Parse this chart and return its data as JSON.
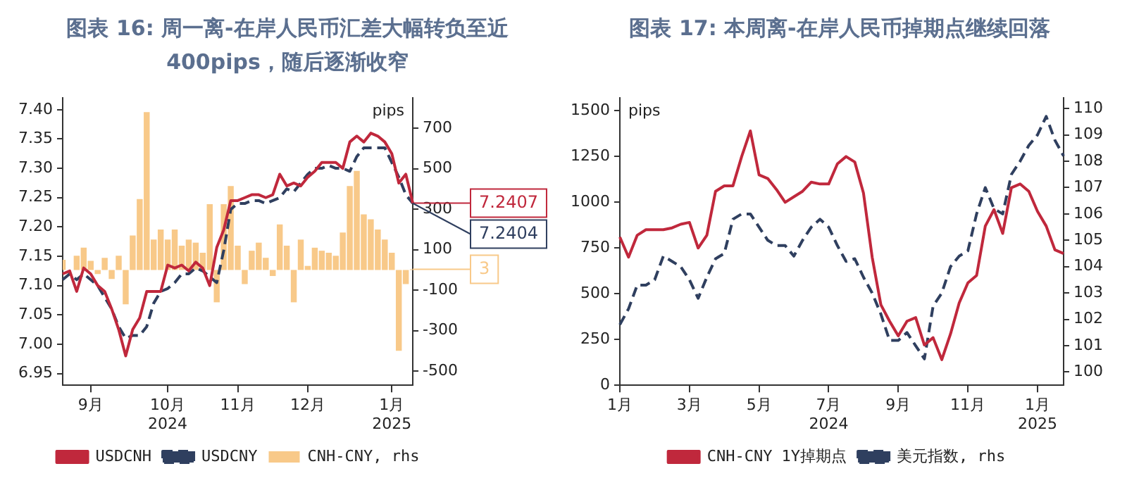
{
  "chart_data": [
    {
      "type": "line",
      "title": "图表 16: 周一离-在岸人民币汇差大幅转负至近400pips，随后逐渐收窄",
      "y2label": "pips",
      "legend": "bottom",
      "marker": "none",
      "categories": [
        null,
        null,
        null,
        null,
        "9月",
        null,
        null,
        null,
        null,
        null,
        null,
        null,
        null,
        null,
        null,
        "10月\n2024",
        null,
        null,
        null,
        null,
        null,
        null,
        null,
        null,
        null,
        "11月",
        null,
        null,
        null,
        null,
        null,
        null,
        null,
        null,
        null,
        "12月",
        null,
        null,
        null,
        null,
        null,
        null,
        null,
        null,
        null,
        null,
        null,
        "1月\n2025",
        null,
        null,
        null
      ],
      "ylim": [
        6.93,
        7.42
      ],
      "yticks": [
        {
          "value": 6.95,
          "label": "6.95"
        },
        {
          "value": 7.0,
          "label": "7.00"
        },
        {
          "value": 7.05,
          "label": "7.05"
        },
        {
          "value": 7.1,
          "label": "7.10"
        },
        {
          "value": 7.15,
          "label": "7.15"
        },
        {
          "value": 7.2,
          "label": "7.20"
        },
        {
          "value": 7.25,
          "label": "7.25"
        },
        {
          "value": 7.3,
          "label": "7.30"
        },
        {
          "value": 7.35,
          "label": "7.35"
        },
        {
          "value": 7.4,
          "label": "7.40"
        }
      ],
      "y2lim": [
        -570,
        850
      ],
      "y2ticks": [
        -500,
        -300,
        -100,
        100,
        300,
        500,
        700
      ],
      "series": [
        {
          "name": "CNH-CNY, rhs",
          "type": "bar",
          "axis": "y2",
          "color": "#f8c989",
          "values": [
            50,
            0,
            70,
            110,
            45,
            -20,
            60,
            -45,
            70,
            -170,
            170,
            350,
            780,
            150,
            200,
            150,
            200,
            120,
            150,
            135,
            85,
            325,
            -160,
            325,
            415,
            120,
            -70,
            95,
            135,
            60,
            -30,
            225,
            120,
            -160,
            150,
            20,
            110,
            95,
            85,
            70,
            185,
            415,
            490,
            275,
            250,
            200,
            150,
            85,
            -400,
            -70,
            3
          ],
          "value_labels": [
            null,
            null,
            null,
            null,
            null,
            null,
            null,
            null,
            null,
            null,
            null,
            null,
            null,
            null,
            null,
            null,
            null,
            null,
            null,
            null,
            null,
            null,
            null,
            null,
            null,
            null,
            null,
            null,
            null,
            null,
            null,
            null,
            null,
            null,
            null,
            null,
            null,
            null,
            null,
            null,
            null,
            null,
            null,
            null,
            null,
            null,
            null,
            null,
            null,
            null,
            "3"
          ]
        },
        {
          "name": "USDCNH",
          "line_style": "solid",
          "color": "#c0283c",
          "values": [
            7.12,
            7.125,
            7.09,
            7.13,
            7.12,
            7.1,
            7.09,
            7.06,
            7.025,
            6.98,
            7.025,
            7.045,
            7.09,
            7.09,
            7.09,
            7.135,
            7.13,
            7.135,
            7.125,
            7.14,
            7.13,
            7.1,
            7.165,
            7.195,
            7.245,
            7.245,
            7.25,
            7.255,
            7.255,
            7.25,
            7.255,
            7.29,
            7.27,
            7.275,
            7.27,
            7.285,
            7.295,
            7.31,
            7.31,
            7.31,
            7.3,
            7.345,
            7.355,
            7.345,
            7.36,
            7.355,
            7.345,
            7.325,
            7.275,
            7.29,
            7.2407
          ],
          "value_labels": [
            null,
            null,
            null,
            null,
            null,
            null,
            null,
            null,
            null,
            null,
            null,
            null,
            null,
            null,
            null,
            null,
            null,
            null,
            null,
            null,
            null,
            null,
            null,
            null,
            null,
            null,
            null,
            null,
            null,
            null,
            null,
            null,
            null,
            null,
            null,
            null,
            null,
            null,
            null,
            null,
            null,
            null,
            null,
            null,
            null,
            null,
            null,
            null,
            null,
            null,
            "7.2407"
          ]
        },
        {
          "name": "USDCNY",
          "line_style": "dashed",
          "color": "#2f3f5f",
          "values": [
            7.11,
            7.12,
            7.11,
            7.12,
            7.11,
            7.1,
            7.08,
            7.06,
            7.03,
            7.01,
            7.015,
            7.015,
            7.03,
            7.07,
            7.09,
            7.095,
            7.105,
            7.12,
            7.12,
            7.13,
            7.125,
            7.115,
            7.105,
            7.16,
            7.23,
            7.24,
            7.24,
            7.245,
            7.245,
            7.24,
            7.245,
            7.25,
            7.265,
            7.26,
            7.275,
            7.29,
            7.3,
            7.3,
            7.305,
            7.3,
            7.3,
            7.295,
            7.32,
            7.335,
            7.335,
            7.335,
            7.335,
            7.31,
            7.285,
            7.255,
            7.2404
          ],
          "value_labels": [
            null,
            null,
            null,
            null,
            null,
            null,
            null,
            null,
            null,
            null,
            null,
            null,
            null,
            null,
            null,
            null,
            null,
            null,
            null,
            null,
            null,
            null,
            null,
            null,
            null,
            null,
            null,
            null,
            null,
            null,
            null,
            null,
            null,
            null,
            null,
            null,
            null,
            null,
            null,
            null,
            null,
            null,
            null,
            null,
            null,
            null,
            null,
            null,
            null,
            null,
            "7.2404"
          ]
        }
      ]
    },
    {
      "type": "line",
      "title": "图表 17: 本周离-在岸人民币掉期点继续回落",
      "ylabel": "pips",
      "legend": "bottom",
      "marker": "none",
      "categories": [
        "1月",
        null,
        null,
        null,
        null,
        null,
        null,
        null,
        "3月",
        null,
        null,
        null,
        null,
        null,
        null,
        null,
        "5月",
        null,
        null,
        null,
        null,
        null,
        null,
        null,
        "7月\n2024",
        null,
        null,
        null,
        null,
        null,
        null,
        null,
        "9月",
        null,
        null,
        null,
        null,
        null,
        null,
        null,
        "11月",
        null,
        null,
        null,
        null,
        null,
        null,
        null,
        "1月\n2025",
        null,
        null,
        null
      ],
      "ylim": [
        0,
        1570
      ],
      "yticks": [
        0,
        250,
        500,
        750,
        1000,
        1250,
        1500
      ],
      "y2lim": [
        99.5,
        110.4
      ],
      "y2ticks": [
        100,
        101,
        102,
        103,
        104,
        105,
        106,
        107,
        108,
        109,
        110
      ],
      "series": [
        {
          "name": "CNH-CNY 1Y掉期点",
          "line_style": "solid",
          "color": "#c0283c",
          "values": [
            810,
            700,
            820,
            850,
            850,
            850,
            860,
            880,
            890,
            750,
            820,
            1060,
            1090,
            1090,
            1250,
            1390,
            1150,
            1130,
            1070,
            1000,
            1030,
            1060,
            1110,
            1100,
            1100,
            1210,
            1250,
            1220,
            1050,
            700,
            440,
            350,
            270,
            350,
            370,
            220,
            260,
            140,
            280,
            450,
            560,
            600,
            870,
            960,
            830,
            1080,
            1100,
            1060,
            950,
            870,
            740,
            720
          ]
        },
        {
          "name": "美元指数, rhs",
          "axis": "y2",
          "line_style": "dashed",
          "color": "#2f3f5f",
          "values": [
            101.8,
            102.4,
            103.3,
            103.3,
            103.5,
            104.4,
            104.2,
            104.0,
            103.5,
            102.8,
            103.6,
            104.3,
            104.5,
            105.8,
            106.0,
            106.0,
            105.5,
            105.0,
            104.8,
            104.8,
            104.4,
            105.0,
            105.5,
            105.8,
            105.5,
            104.8,
            104.2,
            104.3,
            103.6,
            103.0,
            102.2,
            101.2,
            101.2,
            101.5,
            101.0,
            100.5,
            102.5,
            103.0,
            104.0,
            104.4,
            104.6,
            106.0,
            107.0,
            106.2,
            106.0,
            107.5,
            108.0,
            108.6,
            109.0,
            109.7,
            108.8,
            108.2
          ]
        }
      ]
    }
  ]
}
